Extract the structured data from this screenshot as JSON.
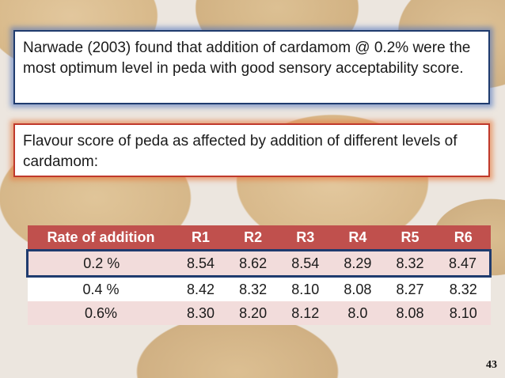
{
  "slide": {
    "callout_1": "Narwade (2003) found that addition of cardamom @ 0.2% were the most optimum level in peda with good sensory acceptability score.",
    "callout_2": "Flavour score of peda as affected by addition of different levels of cardamom:",
    "page_number": "43"
  },
  "table": {
    "headers": [
      "Rate of addition",
      "R1",
      "R2",
      "R3",
      "R4",
      "R5",
      "R6"
    ],
    "rows": [
      [
        "0.2 %",
        "8.54",
        "8.62",
        "8.54",
        "8.29",
        "8.32",
        "8.47"
      ],
      [
        "0.4 %",
        "8.42",
        "8.32",
        "8.10",
        "8.08",
        "8.27",
        "8.32"
      ],
      [
        "0.6%",
        "8.30",
        "8.20",
        "8.12",
        "8.0",
        "8.08",
        "8.10"
      ]
    ]
  },
  "colors": {
    "header_bg": "#c0504d",
    "row_tint": "#f2dcdb",
    "highlight_border": "#1f3b6e"
  }
}
